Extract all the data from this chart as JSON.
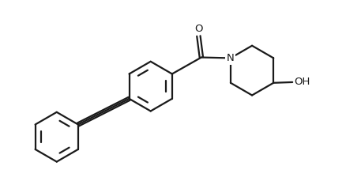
{
  "bg_color": "#ffffff",
  "line_color": "#1a1a1a",
  "line_width": 1.6,
  "font_size": 9.5,
  "fig_width": 4.38,
  "fig_height": 2.34,
  "dpi": 100,
  "xlim": [
    0,
    10
  ],
  "ylim": [
    0,
    5.34
  ]
}
